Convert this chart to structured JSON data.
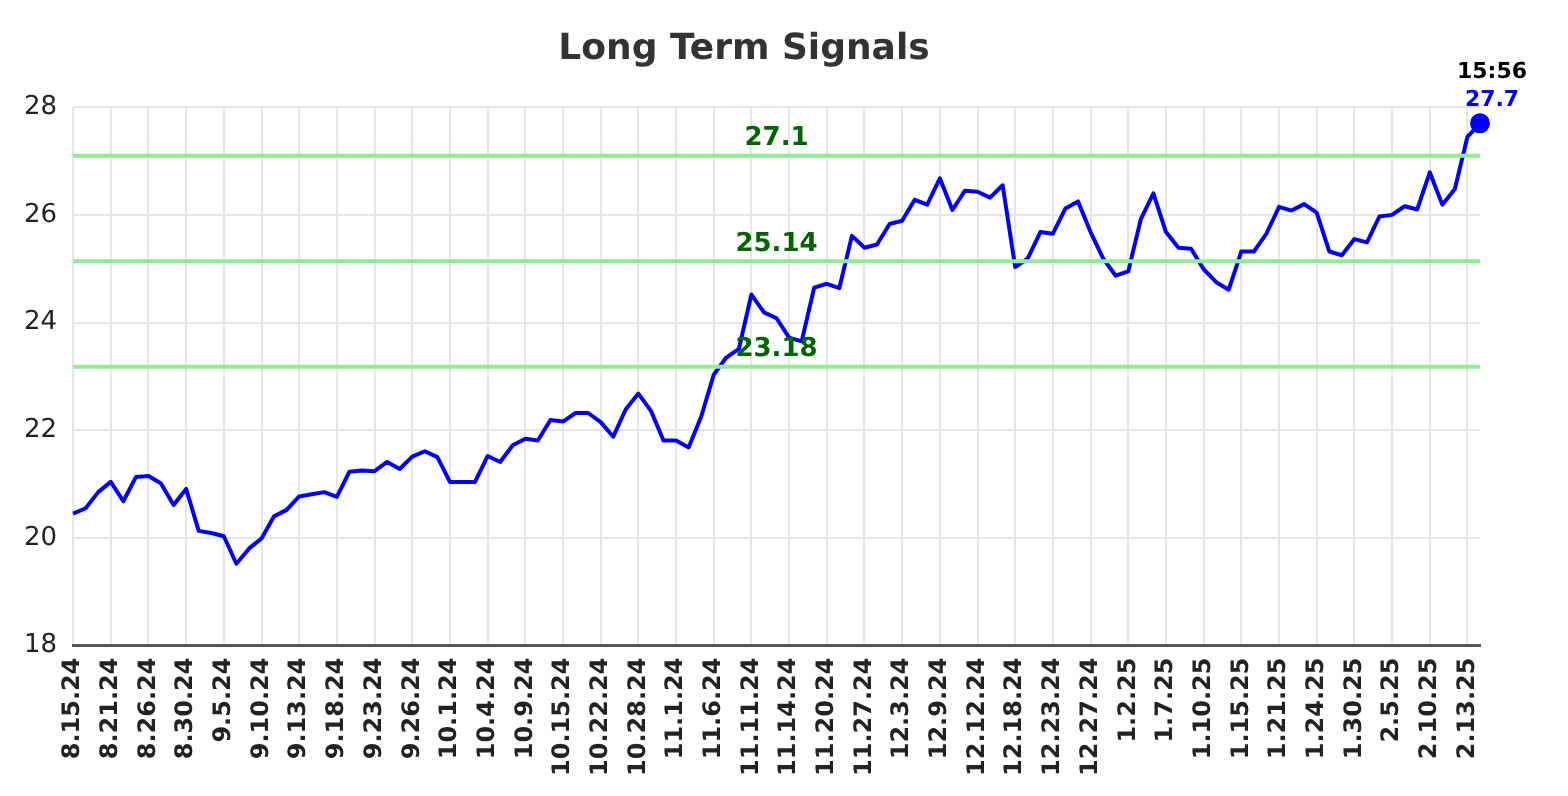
{
  "chart_data": {
    "type": "line",
    "title": "Long Term Signals",
    "categories": [
      "8.15.24",
      null,
      null,
      "8.21.24",
      null,
      null,
      "8.26.24",
      null,
      null,
      "8.30.24",
      null,
      null,
      "9.5.24",
      null,
      null,
      "9.10.24",
      null,
      null,
      "9.13.24",
      null,
      null,
      "9.18.24",
      null,
      null,
      "9.23.24",
      null,
      null,
      "9.26.24",
      null,
      null,
      "10.1.24",
      null,
      null,
      "10.4.24",
      null,
      null,
      "10.9.24",
      null,
      null,
      "10.15.24",
      null,
      null,
      "10.22.24",
      null,
      null,
      "10.28.24",
      null,
      null,
      "11.1.24",
      null,
      null,
      "11.6.24",
      null,
      null,
      "11.11.24",
      null,
      null,
      "11.14.24",
      null,
      null,
      "11.20.24",
      null,
      null,
      "11.27.24",
      null,
      null,
      "12.3.24",
      null,
      null,
      "12.9.24",
      null,
      null,
      "12.12.24",
      null,
      null,
      "12.18.24",
      null,
      null,
      "12.23.24",
      null,
      null,
      "12.27.24",
      null,
      null,
      "1.2.25",
      null,
      null,
      "1.7.25",
      null,
      null,
      "1.10.25",
      null,
      null,
      "1.15.25",
      null,
      null,
      "1.21.25",
      null,
      null,
      "1.24.25",
      null,
      null,
      "1.30.25",
      null,
      null,
      "2.5.25",
      null,
      null,
      "2.10.25",
      null,
      null,
      "2.13.25",
      null
    ],
    "series": [
      {
        "color": "#0000ff",
        "values": [
          20.45,
          20.55,
          20.85,
          21.04,
          20.68,
          21.13,
          21.15,
          21.01,
          20.61,
          20.91,
          20.13,
          20.09,
          20.03,
          19.52,
          19.8,
          19.99,
          20.4,
          20.52,
          20.77,
          20.81,
          20.85,
          20.76,
          21.23,
          21.25,
          21.24,
          21.41,
          21.28,
          21.51,
          21.61,
          21.5,
          21.04,
          21.04,
          21.04,
          21.52,
          21.41,
          21.72,
          21.84,
          21.81,
          22.19,
          22.16,
          22.32,
          22.32,
          22.15,
          21.88,
          22.39,
          22.68,
          22.36,
          21.81,
          21.81,
          21.68,
          22.25,
          23.03,
          23.35,
          23.51,
          24.52,
          24.19,
          24.08,
          23.72,
          23.65,
          24.65,
          24.72,
          24.64,
          25.61,
          25.39,
          25.45,
          25.83,
          25.89,
          26.28,
          26.19,
          26.68,
          26.09,
          26.45,
          26.43,
          26.32,
          26.55,
          25.03,
          25.19,
          25.68,
          25.65,
          26.12,
          26.25,
          25.68,
          25.19,
          24.87,
          24.95,
          25.92,
          26.4,
          25.68,
          25.39,
          25.37,
          24.99,
          24.75,
          24.61,
          25.32,
          25.32,
          25.65,
          26.15,
          26.08,
          26.2,
          26.04,
          25.32,
          25.25,
          25.55,
          25.49,
          25.97,
          26.0,
          26.16,
          26.1,
          26.79,
          26.19,
          26.48,
          27.45,
          27.7
        ],
        "value_labels": [
          null,
          null,
          null,
          null,
          null,
          null,
          null,
          null,
          null,
          null,
          null,
          null,
          null,
          null,
          null,
          null,
          null,
          null,
          null,
          null,
          null,
          null,
          null,
          null,
          null,
          null,
          null,
          null,
          null,
          null,
          null,
          null,
          null,
          null,
          null,
          null,
          null,
          null,
          null,
          null,
          null,
          null,
          null,
          null,
          null,
          null,
          null,
          null,
          null,
          null,
          null,
          null,
          null,
          null,
          null,
          null,
          null,
          null,
          null,
          null,
          null,
          null,
          null,
          null,
          null,
          null,
          null,
          null,
          null,
          null,
          null,
          null,
          null,
          null,
          null,
          null,
          null,
          null,
          null,
          null,
          null,
          null,
          null,
          null,
          null,
          null,
          null,
          null,
          null,
          null,
          null,
          null,
          null,
          null,
          null,
          null,
          null,
          null,
          null,
          null,
          null,
          null,
          null,
          null,
          null,
          null,
          null,
          null,
          null,
          null,
          null,
          null,
          "27.7"
        ]
      }
    ],
    "ylim": [
      18,
      28
    ],
    "yticks": [
      18,
      20,
      22,
      24,
      26,
      28
    ],
    "grid": true,
    "marker": "none",
    "legend": false,
    "ref_lines": [
      {
        "axis": "y",
        "value": 27.1,
        "label": "27.1",
        "color": "#90ee90"
      },
      {
        "axis": "y",
        "value": 25.14,
        "label": "25.14",
        "color": "#90ee90"
      },
      {
        "axis": "y",
        "value": 23.18,
        "label": "23.18",
        "color": "#90ee90"
      }
    ],
    "annotations": [
      "15:56"
    ]
  }
}
